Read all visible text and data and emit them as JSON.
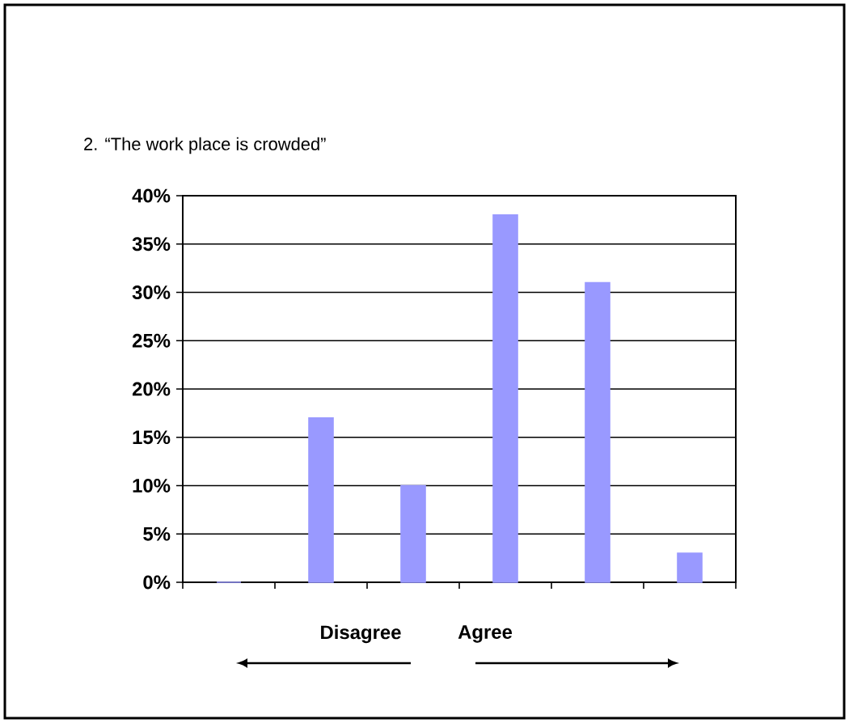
{
  "chart_data": {
    "type": "bar",
    "title": "2. “The work place is crowded”",
    "categories": [
      null,
      null,
      null,
      null,
      null,
      null
    ],
    "values": [
      0,
      17,
      10,
      38,
      31,
      3
    ],
    "color": "#9999ff",
    "ylim": [
      0,
      40
    ],
    "yticks": [
      {
        "value": 0,
        "label": "0%"
      },
      {
        "value": 5,
        "label": "5%"
      },
      {
        "value": 10,
        "label": "10%"
      },
      {
        "value": 15,
        "label": "15%"
      },
      {
        "value": 20,
        "label": "20%"
      },
      {
        "value": 25,
        "label": "25%"
      },
      {
        "value": 30,
        "label": "30%"
      },
      {
        "value": 35,
        "label": "35%"
      },
      {
        "value": 40,
        "label": "40%"
      }
    ],
    "grid": "y",
    "tick_labels": "y",
    "annotations": [
      "Disagree",
      "Agree"
    ]
  }
}
